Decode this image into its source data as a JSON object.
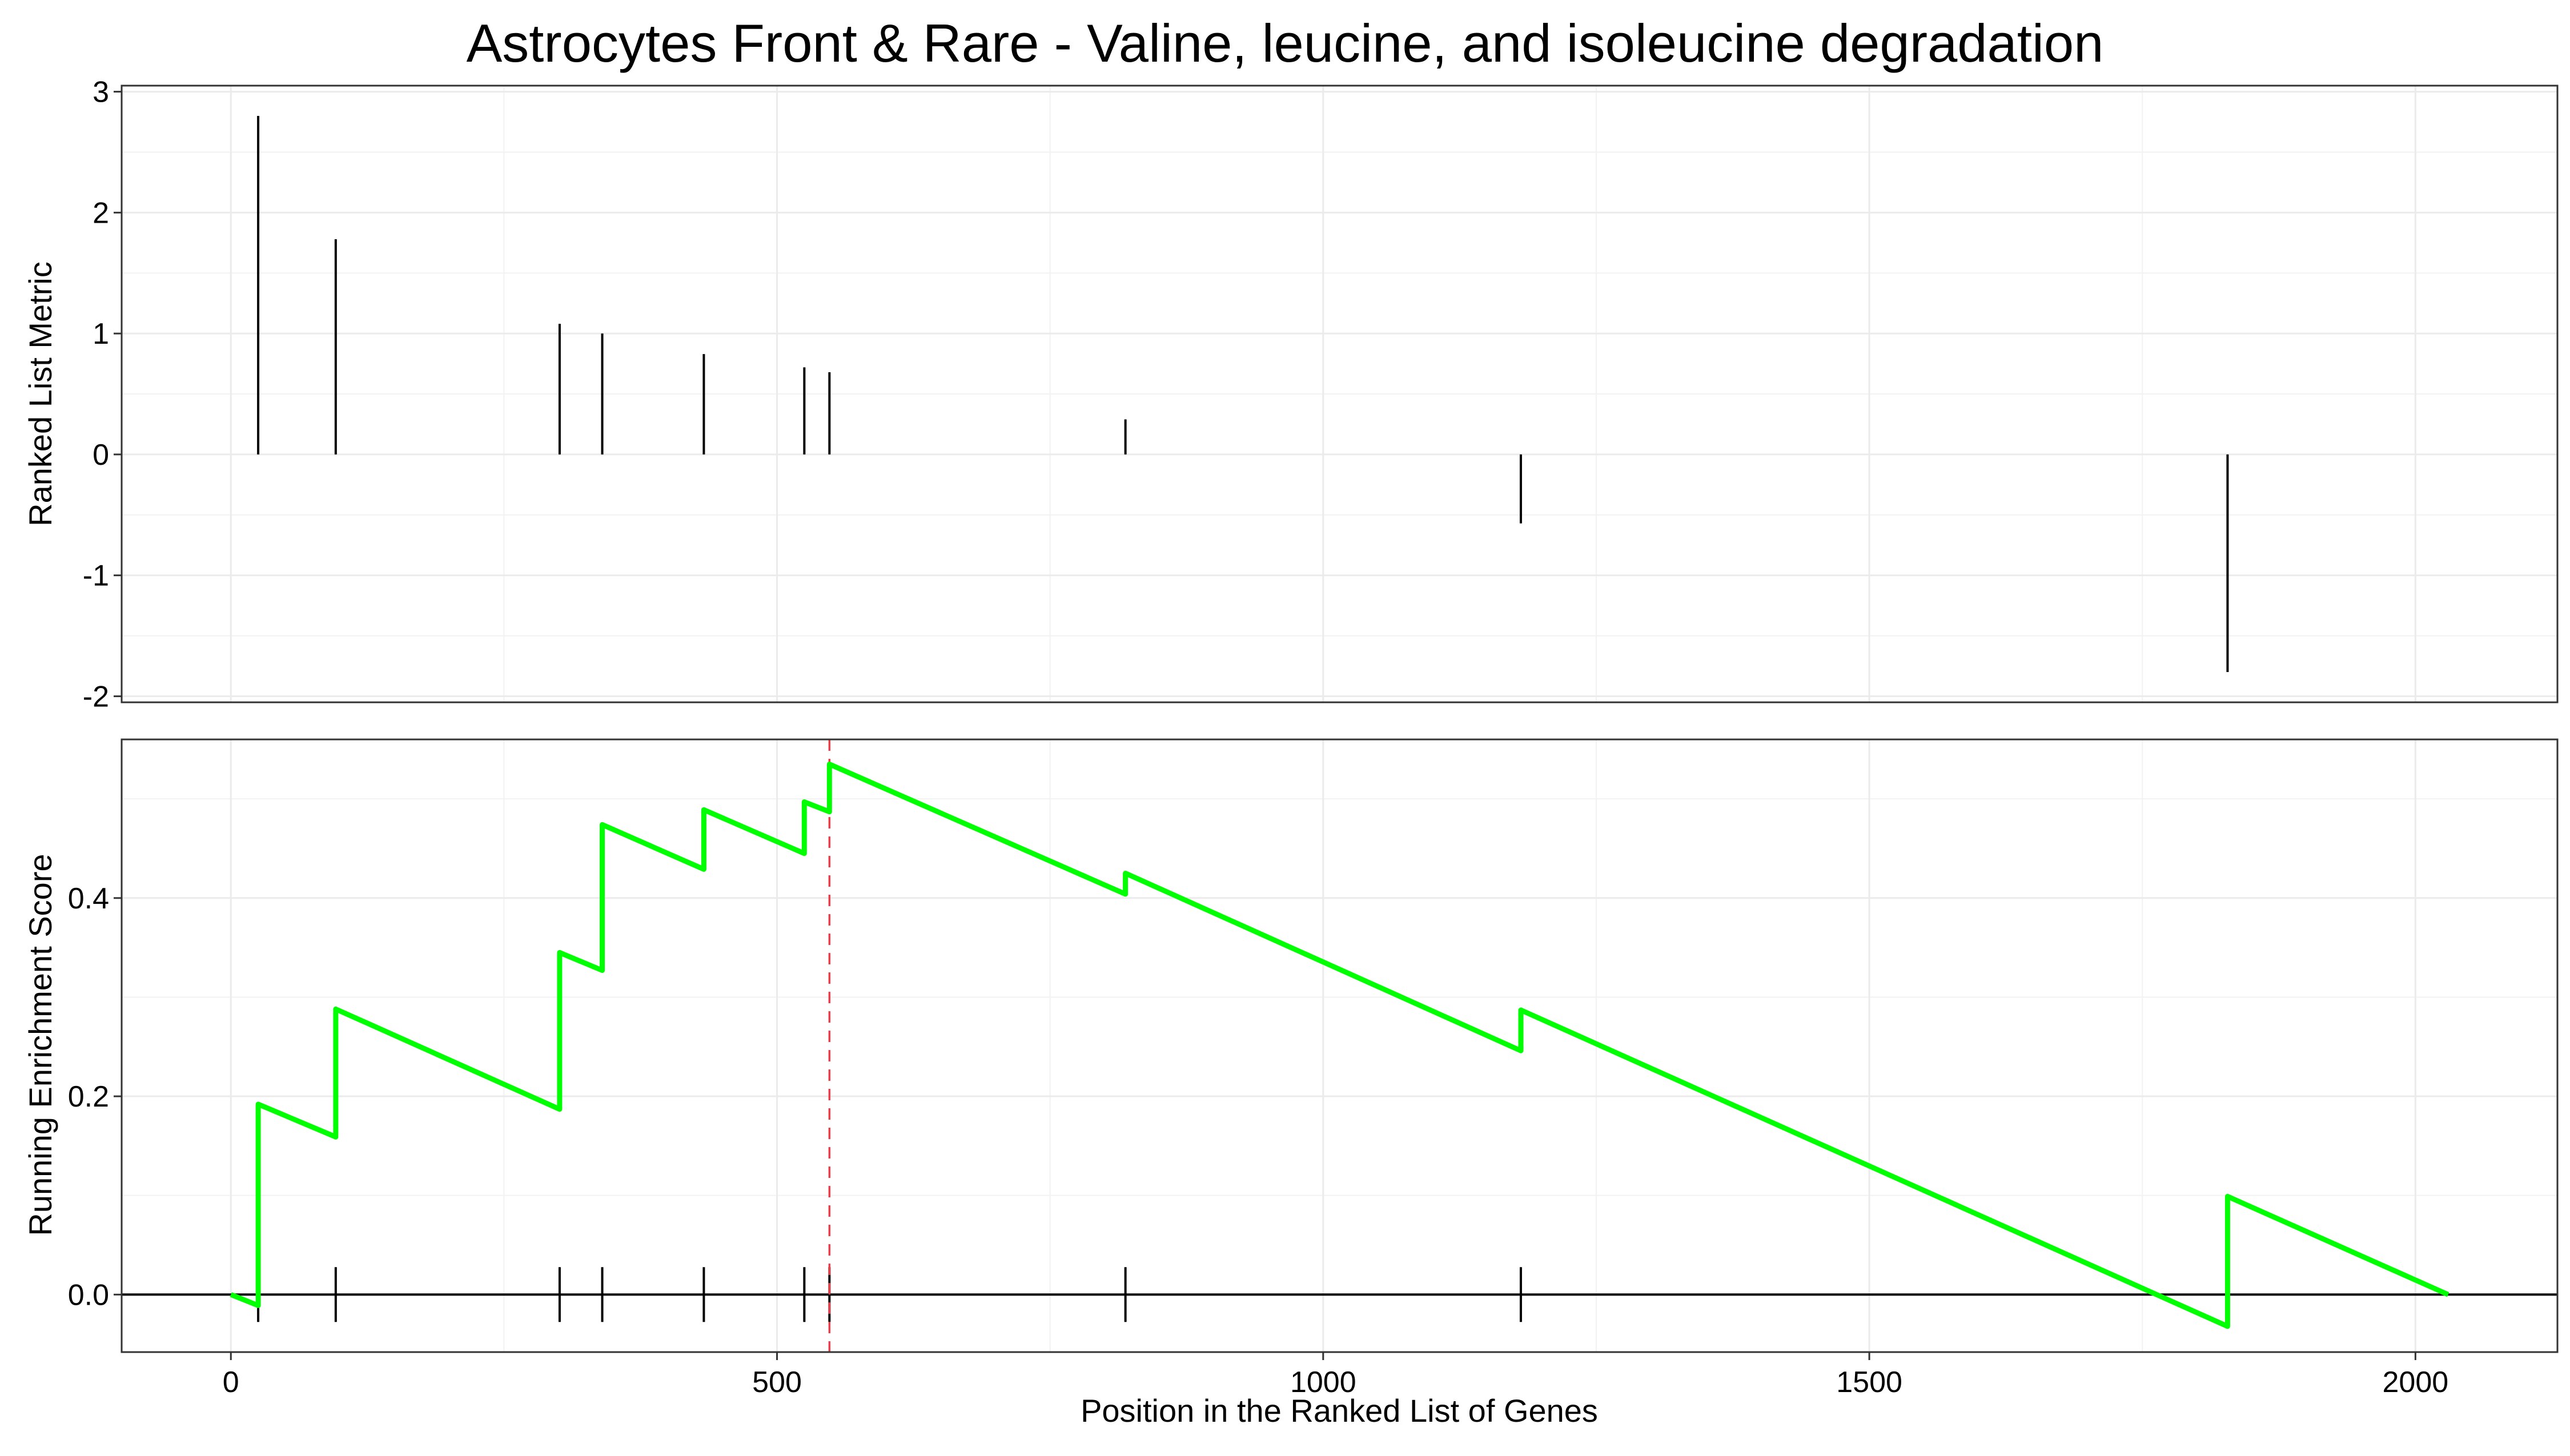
{
  "chart_data": {
    "title": "Astrocytes Front & Rare - Valine, leucine, and isoleucine degradation",
    "xlabel": "Position in the Ranked List of Genes",
    "x_ticks": [
      0,
      500,
      1000,
      1500,
      2000
    ],
    "xlim": [
      -100,
      2130
    ],
    "panels": [
      {
        "type": "bar",
        "ylabel": "Ranked List Metric",
        "ylim": [
          -2.05,
          3.05
        ],
        "y_ticks": [
          -2,
          -1,
          0,
          1,
          2,
          3
        ],
        "grid": true,
        "values": [
          {
            "x": 25,
            "y": 2.8
          },
          {
            "x": 96,
            "y": 1.78
          },
          {
            "x": 301,
            "y": 1.08
          },
          {
            "x": 340,
            "y": 1.0
          },
          {
            "x": 433,
            "y": 0.83
          },
          {
            "x": 525,
            "y": 0.72
          },
          {
            "x": 548,
            "y": 0.68
          },
          {
            "x": 819,
            "y": 0.29
          },
          {
            "x": 1181,
            "y": -0.57
          },
          {
            "x": 1828,
            "y": -1.8
          }
        ]
      },
      {
        "type": "line",
        "ylabel": "Running Enrichment Score",
        "ylim": [
          -0.058,
          0.56
        ],
        "y_ticks": [
          0.0,
          0.2,
          0.4
        ],
        "y_tick_labels": [
          "0.0",
          "0.2",
          "0.4"
        ],
        "grid": true,
        "line_color": "#00ff00",
        "zero_line": 0.0,
        "max_es_position": 548,
        "max_es_line_color": "#e8404a",
        "hit_positions": [
          25,
          96,
          301,
          340,
          433,
          525,
          548,
          819,
          1181,
          1828
        ],
        "running_es": [
          {
            "x": 0,
            "y": 0.0
          },
          {
            "x": 25,
            "y": -0.011
          },
          {
            "x": 25,
            "y": 0.192
          },
          {
            "x": 96,
            "y": 0.159
          },
          {
            "x": 96,
            "y": 0.288
          },
          {
            "x": 301,
            "y": 0.187
          },
          {
            "x": 301,
            "y": 0.345
          },
          {
            "x": 340,
            "y": 0.327
          },
          {
            "x": 340,
            "y": 0.474
          },
          {
            "x": 433,
            "y": 0.429
          },
          {
            "x": 433,
            "y": 0.489
          },
          {
            "x": 525,
            "y": 0.445
          },
          {
            "x": 525,
            "y": 0.497
          },
          {
            "x": 548,
            "y": 0.487
          },
          {
            "x": 548,
            "y": 0.535
          },
          {
            "x": 819,
            "y": 0.404
          },
          {
            "x": 819,
            "y": 0.425
          },
          {
            "x": 1181,
            "y": 0.246
          },
          {
            "x": 1181,
            "y": 0.287
          },
          {
            "x": 1828,
            "y": -0.032
          },
          {
            "x": 1828,
            "y": 0.099
          },
          {
            "x": 2030,
            "y": 0.0
          }
        ]
      }
    ]
  }
}
